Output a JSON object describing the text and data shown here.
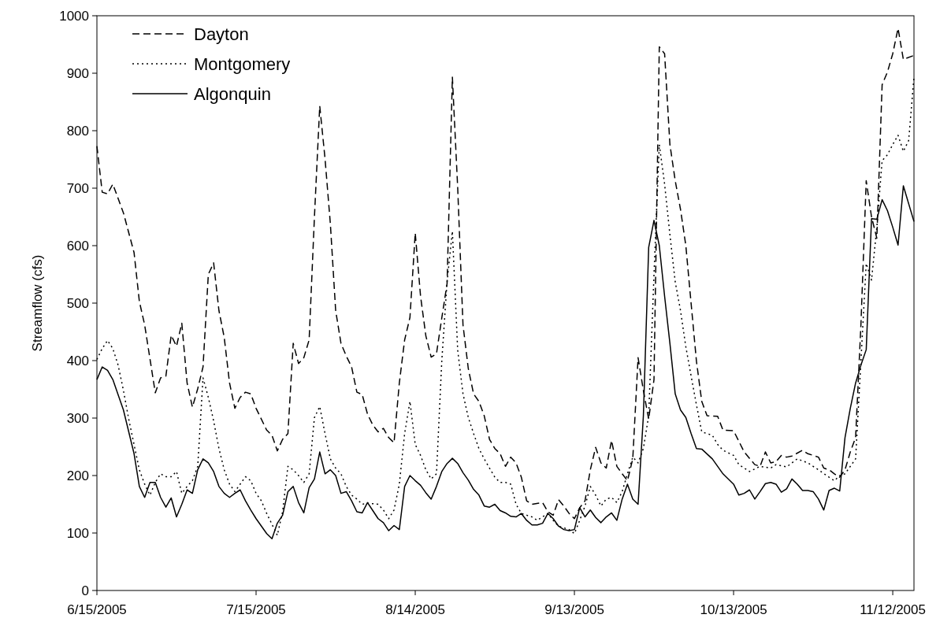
{
  "chart_data": {
    "type": "line",
    "ylabel": "Streamflow (cfs)",
    "xlim": [
      "2005-06-15",
      "2005-11-16"
    ],
    "ylim": [
      0,
      1000
    ],
    "xticks": [
      {
        "value": "2005-06-15",
        "label": "6/15/2005"
      },
      {
        "value": "2005-07-15",
        "label": "7/15/2005"
      },
      {
        "value": "2005-08-14",
        "label": "8/14/2005"
      },
      {
        "value": "2005-09-13",
        "label": "9/13/2005"
      },
      {
        "value": "2005-10-13",
        "label": "10/13/2005"
      },
      {
        "value": "2005-11-12",
        "label": "11/12/2005"
      }
    ],
    "yticks": [
      0,
      100,
      200,
      300,
      400,
      500,
      600,
      700,
      800,
      900,
      1000
    ],
    "grid": false,
    "legend": "top left",
    "marker": "none",
    "series": [
      {
        "name": "Dayton",
        "color": "#000000",
        "line_style": "dashed",
        "x": [
          "2005-06-15",
          "2005-06-16",
          "2005-06-17",
          "2005-06-18",
          "2005-06-20",
          "2005-06-22",
          "2005-06-23",
          "2005-06-24",
          "2005-06-26",
          "2005-06-27",
          "2005-06-28",
          "2005-06-29",
          "2005-06-30",
          "2005-07-01",
          "2005-07-02",
          "2005-07-03",
          "2005-07-04",
          "2005-07-05",
          "2005-07-06",
          "2005-07-07",
          "2005-07-08",
          "2005-07-09",
          "2005-07-10",
          "2005-07-11",
          "2005-07-12",
          "2005-07-13",
          "2005-07-14",
          "2005-07-15",
          "2005-07-17",
          "2005-07-18",
          "2005-07-19",
          "2005-07-20",
          "2005-07-21",
          "2005-07-22",
          "2005-07-23",
          "2005-07-24",
          "2005-07-25",
          "2005-07-26",
          "2005-07-27",
          "2005-07-28",
          "2005-07-29",
          "2005-07-30",
          "2005-07-31",
          "2005-08-01",
          "2005-08-02",
          "2005-08-03",
          "2005-08-04",
          "2005-08-05",
          "2005-08-06",
          "2005-08-07",
          "2005-08-08",
          "2005-08-09",
          "2005-08-10",
          "2005-08-11",
          "2005-08-12",
          "2005-08-13",
          "2005-08-14",
          "2005-08-15",
          "2005-08-16",
          "2005-08-17",
          "2005-08-18",
          "2005-08-19",
          "2005-08-20",
          "2005-08-21",
          "2005-08-22",
          "2005-08-23",
          "2005-08-24",
          "2005-08-25",
          "2005-08-26",
          "2005-08-27",
          "2005-08-28",
          "2005-08-29",
          "2005-08-30",
          "2005-08-31",
          "2005-09-01",
          "2005-09-02",
          "2005-09-03",
          "2005-09-04",
          "2005-09-05",
          "2005-09-07",
          "2005-09-08",
          "2005-09-09",
          "2005-09-10",
          "2005-09-11",
          "2005-09-12",
          "2005-09-13",
          "2005-09-14",
          "2005-09-15",
          "2005-09-16",
          "2005-09-17",
          "2005-09-18",
          "2005-09-19",
          "2005-09-20",
          "2005-09-21",
          "2005-09-22",
          "2005-09-23",
          "2005-09-24",
          "2005-09-25",
          "2005-09-26",
          "2005-09-27",
          "2005-09-28",
          "2005-09-29",
          "2005-09-30",
          "2005-10-01",
          "2005-10-02",
          "2005-10-03",
          "2005-10-04",
          "2005-10-05",
          "2005-10-06",
          "2005-10-07",
          "2005-10-08",
          "2005-10-10",
          "2005-10-11",
          "2005-10-13",
          "2005-10-15",
          "2005-10-17",
          "2005-10-18",
          "2005-10-19",
          "2005-10-20",
          "2005-10-21",
          "2005-10-22",
          "2005-10-23",
          "2005-10-24",
          "2005-10-26",
          "2005-10-27",
          "2005-10-29",
          "2005-10-30",
          "2005-10-31",
          "2005-11-01",
          "2005-11-02",
          "2005-11-03",
          "2005-11-04",
          "2005-11-05",
          "2005-11-06",
          "2005-11-07",
          "2005-11-08",
          "2005-11-09",
          "2005-11-10",
          "2005-11-11",
          "2005-11-12",
          "2005-11-13",
          "2005-11-14",
          "2005-11-16"
        ],
        "values": [
          773,
          693,
          690,
          707,
          657,
          588,
          503,
          462,
          344,
          370,
          373,
          444,
          425,
          465,
          361,
          319,
          351,
          389,
          550,
          570,
          487,
          440,
          361,
          317,
          336,
          345,
          342,
          317,
          279,
          270,
          243,
          263,
          273,
          430,
          395,
          405,
          436,
          650,
          843,
          751,
          638,
          487,
          430,
          408,
          389,
          345,
          341,
          307,
          288,
          276,
          282,
          266,
          257,
          361,
          436,
          475,
          622,
          512,
          443,
          406,
          412,
          474,
          534,
          893,
          701,
          462,
          386,
          342,
          329,
          304,
          263,
          247,
          238,
          216,
          232,
          222,
          197,
          156,
          150,
          153,
          137,
          131,
          158,
          147,
          134,
          125,
          144,
          156,
          210,
          249,
          222,
          213,
          261,
          216,
          203,
          191,
          229,
          405,
          348,
          298,
          367,
          946,
          934,
          776,
          713,
          663,
          600,
          499,
          399,
          329,
          304,
          303,
          279,
          278,
          241,
          219,
          216,
          241,
          222,
          224,
          235,
          232,
          234,
          244,
          238,
          232,
          213,
          210,
          203,
          197,
          210,
          241,
          266,
          462,
          713,
          650,
          613,
          880,
          902,
          934,
          978,
          924,
          931
        ]
      },
      {
        "name": "Montgomery",
        "color": "#000000",
        "line_style": "dotted",
        "x": [
          "2005-06-15",
          "2005-06-16",
          "2005-06-17",
          "2005-06-18",
          "2005-06-19",
          "2005-06-20",
          "2005-06-21",
          "2005-06-22",
          "2005-06-23",
          "2005-06-24",
          "2005-06-25",
          "2005-06-26",
          "2005-06-27",
          "2005-06-28",
          "2005-06-29",
          "2005-06-30",
          "2005-07-01",
          "2005-07-02",
          "2005-07-03",
          "2005-07-04",
          "2005-07-05",
          "2005-07-06",
          "2005-07-07",
          "2005-07-08",
          "2005-07-09",
          "2005-07-10",
          "2005-07-11",
          "2005-07-12",
          "2005-07-13",
          "2005-07-14",
          "2005-07-15",
          "2005-07-16",
          "2005-07-17",
          "2005-07-18",
          "2005-07-19",
          "2005-07-20",
          "2005-07-21",
          "2005-07-22",
          "2005-07-23",
          "2005-07-24",
          "2005-07-25",
          "2005-07-26",
          "2005-07-27",
          "2005-07-28",
          "2005-07-29",
          "2005-07-30",
          "2005-07-31",
          "2005-08-01",
          "2005-08-02",
          "2005-08-03",
          "2005-08-04",
          "2005-08-05",
          "2005-08-06",
          "2005-08-07",
          "2005-08-08",
          "2005-08-09",
          "2005-08-10",
          "2005-08-11",
          "2005-08-12",
          "2005-08-13",
          "2005-08-14",
          "2005-08-15",
          "2005-08-16",
          "2005-08-17",
          "2005-08-18",
          "2005-08-19",
          "2005-08-20",
          "2005-08-21",
          "2005-08-22",
          "2005-08-23",
          "2005-08-24",
          "2005-08-25",
          "2005-08-26",
          "2005-08-27",
          "2005-08-28",
          "2005-08-29",
          "2005-08-30",
          "2005-08-31",
          "2005-09-01",
          "2005-09-02",
          "2005-09-03",
          "2005-09-04",
          "2005-09-05",
          "2005-09-06",
          "2005-09-07",
          "2005-09-08",
          "2005-09-09",
          "2005-09-10",
          "2005-09-12",
          "2005-09-13",
          "2005-09-14",
          "2005-09-15",
          "2005-09-16",
          "2005-09-17",
          "2005-09-18",
          "2005-09-19",
          "2005-09-20",
          "2005-09-21",
          "2005-09-22",
          "2005-09-23",
          "2005-09-24",
          "2005-09-25",
          "2005-09-26",
          "2005-09-27",
          "2005-09-28",
          "2005-09-29",
          "2005-09-30",
          "2005-10-01",
          "2005-10-02",
          "2005-10-03",
          "2005-10-04",
          "2005-10-05",
          "2005-10-06",
          "2005-10-07",
          "2005-10-08",
          "2005-10-09",
          "2005-10-10",
          "2005-10-11",
          "2005-10-13",
          "2005-10-14",
          "2005-10-16",
          "2005-10-18",
          "2005-10-20",
          "2005-10-21",
          "2005-10-23",
          "2005-10-25",
          "2005-10-27",
          "2005-10-28",
          "2005-10-29",
          "2005-10-31",
          "2005-11-01",
          "2005-11-02",
          "2005-11-03",
          "2005-11-05",
          "2005-11-06",
          "2005-11-07",
          "2005-11-08",
          "2005-11-09",
          "2005-11-10",
          "2005-11-11",
          "2005-11-12",
          "2005-11-13",
          "2005-11-14",
          "2005-11-15",
          "2005-11-16"
        ],
        "values": [
          402,
          421,
          435,
          421,
          392,
          348,
          298,
          254,
          210,
          185,
          166,
          188,
          203,
          198,
          198,
          207,
          169,
          181,
          191,
          216,
          370,
          336,
          295,
          247,
          210,
          185,
          172,
          185,
          198,
          191,
          169,
          156,
          134,
          115,
          96,
          137,
          216,
          210,
          200,
          188,
          203,
          301,
          320,
          273,
          229,
          213,
          203,
          181,
          166,
          159,
          150,
          152,
          151,
          150,
          140,
          125,
          140,
          185,
          273,
          329,
          254,
          235,
          210,
          194,
          203,
          399,
          537,
          625,
          418,
          342,
          301,
          273,
          247,
          229,
          213,
          197,
          188,
          188,
          185,
          150,
          134,
          131,
          128,
          122,
          128,
          134,
          122,
          112,
          106,
          99,
          122,
          147,
          181,
          166,
          147,
          159,
          162,
          153,
          172,
          203,
          232,
          222,
          247,
          304,
          550,
          776,
          707,
          619,
          537,
          487,
          424,
          373,
          323,
          276,
          273,
          270,
          254,
          244,
          235,
          219,
          207,
          216,
          213,
          219,
          215,
          229,
          222,
          216,
          210,
          197,
          191,
          200,
          203,
          229,
          399,
          569,
          540,
          632,
          748,
          758,
          776,
          792,
          764,
          783,
          893
        ]
      },
      {
        "name": "Algonquin",
        "color": "#000000",
        "line_style": "solid",
        "x": [
          "2005-06-15",
          "2005-06-16",
          "2005-06-17",
          "2005-06-18",
          "2005-06-20",
          "2005-06-22",
          "2005-06-23",
          "2005-06-24",
          "2005-06-25",
          "2005-06-26",
          "2005-06-27",
          "2005-06-28",
          "2005-06-29",
          "2005-06-30",
          "2005-07-01",
          "2005-07-02",
          "2005-07-03",
          "2005-07-04",
          "2005-07-05",
          "2005-07-06",
          "2005-07-07",
          "2005-07-08",
          "2005-07-09",
          "2005-07-10",
          "2005-07-11",
          "2005-07-12",
          "2005-07-13",
          "2005-07-14",
          "2005-07-15",
          "2005-07-16",
          "2005-07-17",
          "2005-07-18",
          "2005-07-19",
          "2005-07-20",
          "2005-07-21",
          "2005-07-22",
          "2005-07-23",
          "2005-07-24",
          "2005-07-25",
          "2005-07-26",
          "2005-07-27",
          "2005-07-28",
          "2005-07-29",
          "2005-07-30",
          "2005-07-31",
          "2005-08-01",
          "2005-08-02",
          "2005-08-03",
          "2005-08-04",
          "2005-08-05",
          "2005-08-06",
          "2005-08-07",
          "2005-08-08",
          "2005-08-09",
          "2005-08-10",
          "2005-08-11",
          "2005-08-12",
          "2005-08-13",
          "2005-08-14",
          "2005-08-15",
          "2005-08-16",
          "2005-08-17",
          "2005-08-18",
          "2005-08-19",
          "2005-08-20",
          "2005-08-21",
          "2005-08-22",
          "2005-08-23",
          "2005-08-24",
          "2005-08-25",
          "2005-08-26",
          "2005-08-27",
          "2005-08-28",
          "2005-08-29",
          "2005-08-30",
          "2005-08-31",
          "2005-09-01",
          "2005-09-02",
          "2005-09-03",
          "2005-09-04",
          "2005-09-05",
          "2005-09-06",
          "2005-09-07",
          "2005-09-08",
          "2005-09-09",
          "2005-09-10",
          "2005-09-11",
          "2005-09-12",
          "2005-09-13",
          "2005-09-14",
          "2005-09-15",
          "2005-09-16",
          "2005-09-17",
          "2005-09-18",
          "2005-09-19",
          "2005-09-20",
          "2005-09-21",
          "2005-09-22",
          "2005-09-23",
          "2005-09-24",
          "2005-09-25",
          "2005-09-26",
          "2005-09-27",
          "2005-09-28",
          "2005-09-29",
          "2005-09-30",
          "2005-10-01",
          "2005-10-02",
          "2005-10-03",
          "2005-10-04",
          "2005-10-05",
          "2005-10-06",
          "2005-10-07",
          "2005-10-09",
          "2005-10-11",
          "2005-10-13",
          "2005-10-14",
          "2005-10-15",
          "2005-10-16",
          "2005-10-17",
          "2005-10-18",
          "2005-10-19",
          "2005-10-20",
          "2005-10-21",
          "2005-10-22",
          "2005-10-23",
          "2005-10-24",
          "2005-10-25",
          "2005-10-26",
          "2005-10-27",
          "2005-10-28",
          "2005-10-29",
          "2005-10-30",
          "2005-10-31",
          "2005-11-01",
          "2005-11-02",
          "2005-11-03",
          "2005-11-04",
          "2005-11-05",
          "2005-11-06",
          "2005-11-07",
          "2005-11-08",
          "2005-11-09",
          "2005-11-10",
          "2005-11-11",
          "2005-11-12",
          "2005-11-13",
          "2005-11-14",
          "2005-11-16"
        ],
        "values": [
          367,
          389,
          383,
          367,
          314,
          238,
          181,
          162,
          188,
          188,
          162,
          145,
          161,
          128,
          150,
          175,
          169,
          210,
          229,
          222,
          207,
          181,
          169,
          162,
          169,
          175,
          156,
          140,
          125,
          112,
          99,
          90,
          117,
          131,
          172,
          181,
          153,
          135,
          179,
          194,
          241,
          203,
          210,
          200,
          169,
          172,
          156,
          137,
          135,
          153,
          139,
          125,
          118,
          104,
          113,
          106,
          181,
          200,
          191,
          183,
          170,
          159,
          181,
          207,
          221,
          230,
          221,
          205,
          192,
          176,
          166,
          147,
          145,
          150,
          139,
          135,
          129,
          128,
          134,
          122,
          114,
          114,
          117,
          134,
          125,
          112,
          106,
          104,
          106,
          144,
          128,
          140,
          127,
          118,
          128,
          135,
          122,
          159,
          185,
          159,
          150,
          304,
          597,
          644,
          600,
          512,
          430,
          342,
          314,
          301,
          273,
          247,
          246,
          229,
          203,
          185,
          166,
          169,
          175,
          159,
          172,
          186,
          188,
          185,
          171,
          177,
          194,
          185,
          174,
          174,
          172,
          159,
          140,
          174,
          178,
          173,
          266,
          317,
          361,
          392,
          419,
          647,
          646,
          680,
          661,
          632,
          601,
          704,
          642
        ]
      }
    ]
  }
}
